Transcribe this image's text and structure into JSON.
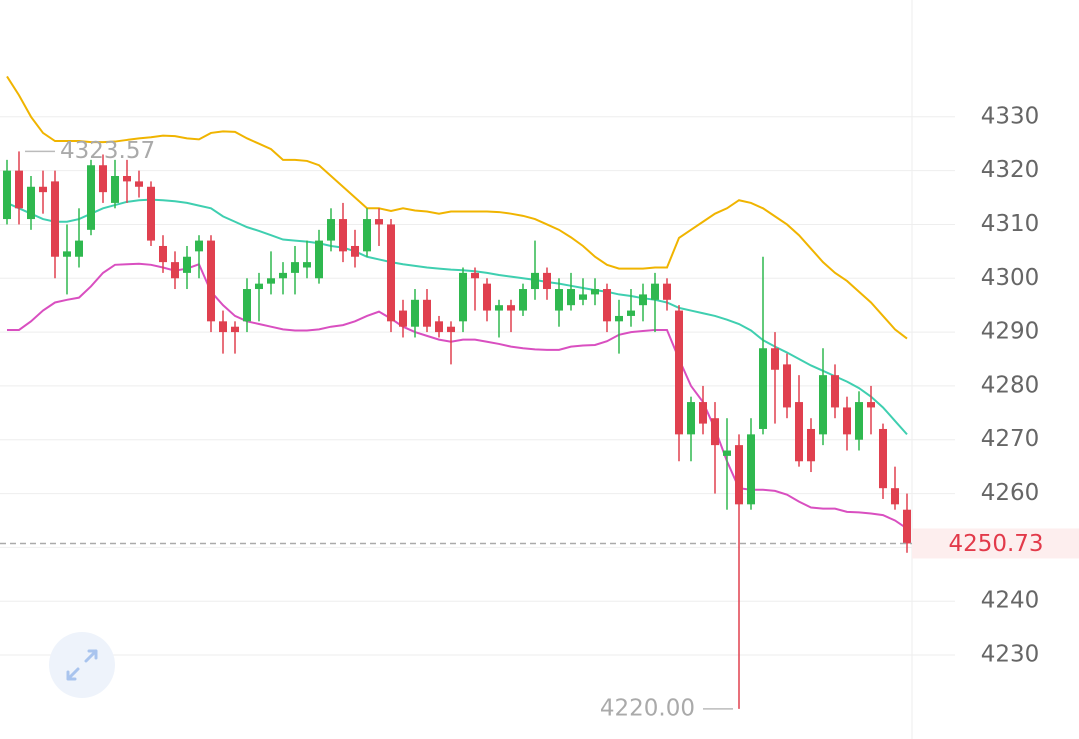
{
  "chart_data": {
    "type": "candlestick",
    "ylim": [
      4214.4,
      4351.7
    ],
    "yticks": [
      4230,
      4240,
      4250,
      4260,
      4270,
      4280,
      4290,
      4300,
      4310,
      4320,
      4330
    ],
    "grid": true,
    "up_color": "#2fb84f",
    "down_color": "#e0404f",
    "open": [
      4311,
      4320,
      4311,
      4317,
      4318,
      4304,
      4304,
      4309,
      4321,
      4314,
      4319,
      4318,
      4317,
      4306,
      4303,
      4301,
      4305,
      4307,
      4292,
      4291,
      4292,
      4298,
      4299,
      4300,
      4301,
      4302,
      4300,
      4307,
      4311,
      4306,
      4305,
      4311,
      4310,
      4294,
      4291,
      4296,
      4292,
      4291,
      4292,
      4301,
      4299,
      4294,
      4295,
      4294,
      4298,
      4301,
      4294,
      4295,
      4296,
      4297,
      4298,
      4292,
      4293,
      4295,
      4296,
      4299,
      4294,
      4271,
      4277,
      4274,
      4267,
      4269,
      4258,
      4272,
      4287,
      4284,
      4277,
      4272,
      4271,
      4282,
      4276,
      4270,
      4277,
      4272,
      4261,
      4257
    ],
    "high": [
      4322,
      4323.57,
      4319,
      4320,
      4320,
      4310,
      4313,
      4322,
      4323,
      4322,
      4322,
      4320,
      4318,
      4308,
      4305,
      4306,
      4308,
      4308,
      4294,
      4292,
      4300,
      4301,
      4305,
      4303,
      4306,
      4307,
      4309,
      4313,
      4314,
      4309,
      4313,
      4313,
      4311,
      4296,
      4298,
      4298,
      4293,
      4292,
      4302,
      4302,
      4300,
      4296,
      4296,
      4299,
      4307,
      4302,
      4300,
      4301,
      4300,
      4300,
      4299,
      4296,
      4298,
      4299,
      4301,
      4300,
      4295,
      4278,
      4280,
      4277,
      4274,
      4271,
      4274,
      4304,
      4290,
      4286,
      4282,
      4274,
      4287,
      4284,
      4278,
      4279,
      4280,
      4273,
      4265,
      4260
    ],
    "low": [
      4310,
      4310,
      4309,
      4312,
      4300,
      4297,
      4302,
      4308,
      4314,
      4313,
      4314,
      4315,
      4306,
      4301,
      4298,
      4298,
      4300,
      4290,
      4286,
      4286,
      4290,
      4292,
      4297,
      4297,
      4297,
      4300,
      4299,
      4305,
      4303,
      4302,
      4304,
      4306,
      4290,
      4289,
      4289,
      4290,
      4289,
      4284,
      4290,
      4294,
      4292,
      4289,
      4290,
      4293,
      4296,
      4296,
      4291,
      4294,
      4295,
      4295,
      4290,
      4286,
      4291,
      4292,
      4290,
      4294,
      4266,
      4266,
      4271,
      4260,
      4257,
      4220,
      4257,
      4271,
      4273,
      4274,
      4265,
      4264,
      4269,
      4274,
      4268,
      4268,
      4271,
      4259,
      4257,
      4249
    ],
    "close": [
      4320,
      4313,
      4317,
      4316,
      4304,
      4305,
      4307,
      4321,
      4316,
      4319,
      4318,
      4317,
      4307,
      4303,
      4300,
      4304,
      4307,
      4292,
      4290,
      4290,
      4298,
      4299,
      4300,
      4301,
      4303,
      4303,
      4307,
      4311,
      4305,
      4304,
      4311,
      4310,
      4292,
      4291,
      4296,
      4291,
      4290,
      4290,
      4301,
      4300,
      4294,
      4295,
      4294,
      4298,
      4301,
      4298,
      4298,
      4298,
      4297,
      4298,
      4292,
      4293,
      4294,
      4297,
      4299,
      4296,
      4271,
      4277,
      4273,
      4269,
      4268,
      4258,
      4271,
      4287,
      4283,
      4276,
      4266,
      4266,
      4282,
      4276,
      4271,
      4277,
      4276,
      4261,
      4258,
      4250.73
    ],
    "lines": [
      {
        "color": "#f0b400",
        "values": [
          4337.5,
          4334,
          4330,
          4327,
          4325.5,
          4325.5,
          4325.5,
          4325.3,
          4325.3,
          4325.4,
          4325.7,
          4326,
          4326.2,
          4326.5,
          4326.4,
          4326,
          4325.8,
          4327,
          4327.3,
          4327.2,
          4326,
          4325,
          4324,
          4322,
          4322,
          4321.8,
          4321,
          4319,
          4317,
          4315,
          4313,
          4313,
          4312.5,
          4313,
          4312.6,
          4312.4,
          4312,
          4312.4,
          4312.4,
          4312.4,
          4312.4,
          4312.3,
          4312,
          4311.6,
          4311,
          4310,
          4309,
          4307.6,
          4306,
          4304,
          4302.5,
          4301.8,
          4301.8,
          4301.8,
          4302,
          4302,
          4307.5,
          4309,
          4310.5,
          4312,
          4313,
          4314.5,
          4314,
          4313,
          4311.5,
          4310,
          4308,
          4305.5,
          4303,
          4301,
          4299.5,
          4297.5,
          4295.5,
          4293,
          4290.5,
          4288.8
        ]
      },
      {
        "color": "#3fcfb0",
        "values": [
          4314,
          4313,
          4312,
          4311,
          4310.5,
          4310.5,
          4311,
          4312,
          4313,
          4313.6,
          4314.2,
          4314.5,
          4314.6,
          4314.5,
          4314.3,
          4314,
          4313.5,
          4313,
          4311.5,
          4310.5,
          4309.5,
          4308.8,
          4308,
          4307.2,
          4307,
          4306.8,
          4306.5,
          4306,
          4305.7,
          4305,
          4304,
          4303.5,
          4303,
          4302.6,
          4302.3,
          4302,
          4301.8,
          4301.6,
          4301.5,
          4301.3,
          4301,
          4300.6,
          4300.3,
          4300,
          4299.7,
          4299.3,
          4299,
          4298.6,
          4298.2,
          4297.8,
          4297.5,
          4297,
          4296.7,
          4296.3,
          4296,
          4295.5,
          4294.5,
          4294,
          4293.5,
          4293,
          4292.3,
          4291.5,
          4290.3,
          4288.5,
          4287.3,
          4286.2,
          4285,
          4283.8,
          4282.8,
          4281.8,
          4280.8,
          4279.6,
          4278,
          4276,
          4273.5,
          4271
        ]
      },
      {
        "color": "#d94fc0",
        "values": [
          4290.4,
          4290.4,
          4292,
          4294,
          4295.5,
          4296,
          4296.4,
          4298.5,
          4301,
          4302.5,
          4302.6,
          4302.7,
          4302.5,
          4302,
          4301.4,
          4301.8,
          4302.6,
          4297.5,
          4295,
          4293,
          4292,
          4291.5,
          4291,
          4290.5,
          4290.3,
          4290.3,
          4290.5,
          4291,
          4291.3,
          4292,
          4293,
          4293.8,
          4292.5,
          4291,
          4290,
          4289.3,
          4288.6,
          4288.2,
          4288.6,
          4288.6,
          4288.2,
          4287.8,
          4287.3,
          4287,
          4286.8,
          4286.7,
          4286.7,
          4287.3,
          4287.5,
          4287.6,
          4288.3,
          4289.5,
          4290,
          4290.2,
          4290.4,
          4290.4,
          4285,
          4280,
          4277,
          4272,
          4266,
          4261,
          4260.7,
          4260.7,
          4260.5,
          4259.8,
          4258.5,
          4257.4,
          4257.2,
          4257.2,
          4256.6,
          4256.5,
          4256.3,
          4256,
          4255,
          4253.5
        ]
      }
    ],
    "extreme_labels": {
      "high": "4323.57",
      "low": "4220.00"
    }
  }
}
